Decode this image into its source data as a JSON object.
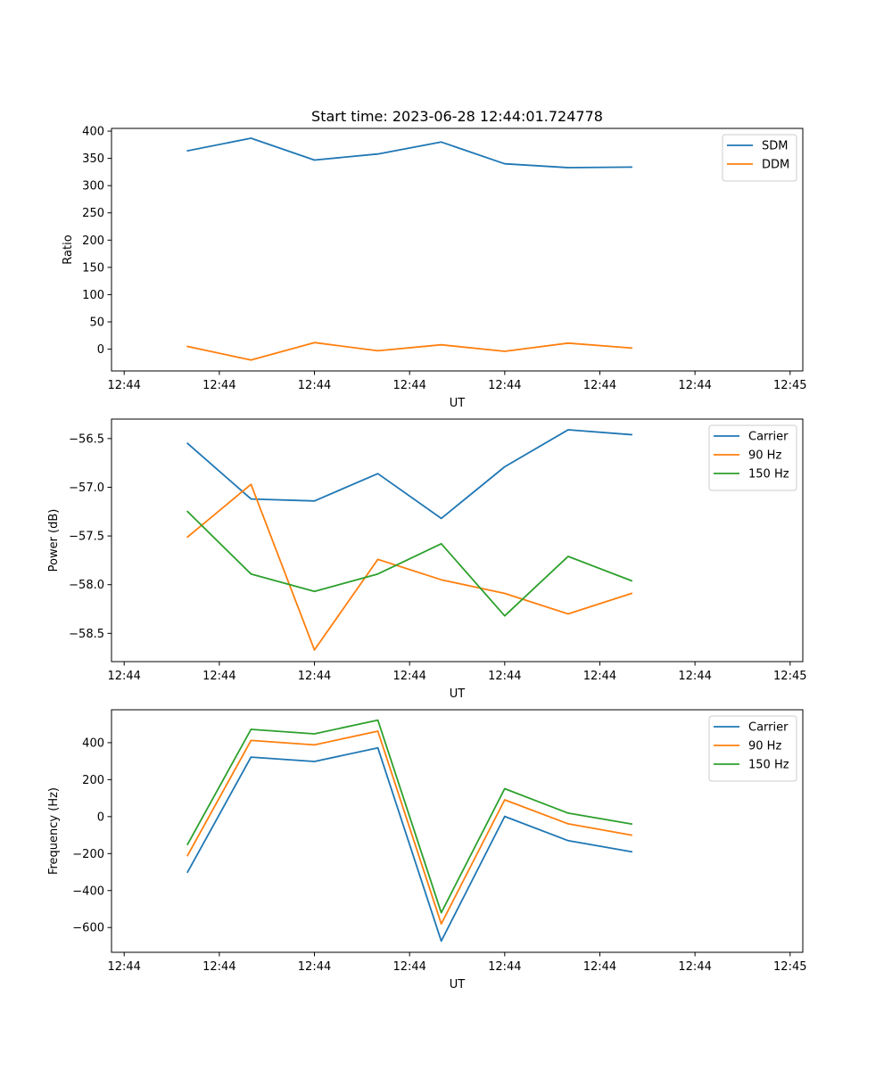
{
  "figure": {
    "title": "Start time: 2023-06-28 12:44:01.724778"
  },
  "colors": {
    "blue": "#1f77b4",
    "orange": "#ff7f0e",
    "green": "#2ca02c"
  },
  "chart_data": [
    {
      "type": "line",
      "title": "Start time: 2023-06-28 12:44:01.724778",
      "xlabel": "UT",
      "ylabel": "Ratio",
      "x_tick_labels": [
        "12:44",
        "12:44",
        "12:44",
        "12:44",
        "12:44",
        "12:44",
        "12:44",
        "12:45"
      ],
      "y_ticks": [
        0,
        50,
        100,
        150,
        200,
        250,
        300,
        350,
        400
      ],
      "ylim": [
        -40,
        405
      ],
      "legend_position": "upper right",
      "series": [
        {
          "name": "SDM",
          "color": "#1f77b4",
          "values": [
            364,
            387,
            347,
            358,
            380,
            340,
            333,
            334
          ]
        },
        {
          "name": "DDM",
          "color": "#ff7f0e",
          "values": [
            5,
            -20,
            12,
            -3,
            8,
            -4,
            11,
            2
          ]
        }
      ]
    },
    {
      "type": "line",
      "title": "",
      "xlabel": "UT",
      "ylabel": "Power (dB)",
      "x_tick_labels": [
        "12:44",
        "12:44",
        "12:44",
        "12:44",
        "12:44",
        "12:44",
        "12:44",
        "12:45"
      ],
      "y_ticks": [
        -58.5,
        -58.0,
        -57.5,
        -57.0,
        -56.5
      ],
      "y_tick_labels": [
        "−58.5",
        "−58.0",
        "−57.5",
        "−57.0",
        "−56.5"
      ],
      "ylim": [
        -58.79,
        -56.3
      ],
      "legend_position": "upper right",
      "series": [
        {
          "name": "Carrier",
          "color": "#1f77b4",
          "values": [
            -56.55,
            -57.12,
            -57.14,
            -56.86,
            -57.32,
            -56.79,
            -56.41,
            -56.46
          ]
        },
        {
          "name": "90 Hz",
          "color": "#ff7f0e",
          "values": [
            -57.51,
            -56.97,
            -58.67,
            -57.74,
            -57.95,
            -58.09,
            -58.3,
            -58.09
          ]
        },
        {
          "name": "150 Hz",
          "color": "#2ca02c",
          "values": [
            -57.25,
            -57.89,
            -58.07,
            -57.89,
            -57.58,
            -58.32,
            -57.71,
            -57.96
          ]
        }
      ]
    },
    {
      "type": "line",
      "title": "",
      "xlabel": "UT",
      "ylabel": "Frequency (Hz)",
      "x_tick_labels": [
        "12:44",
        "12:44",
        "12:44",
        "12:44",
        "12:44",
        "12:44",
        "12:44",
        "12:45"
      ],
      "y_ticks": [
        -600,
        -400,
        -200,
        0,
        200,
        400
      ],
      "y_tick_labels": [
        "−600",
        "−400",
        "−200",
        "0",
        "200",
        "400"
      ],
      "ylim": [
        -734,
        578
      ],
      "legend_position": "upper right",
      "series": [
        {
          "name": "Carrier",
          "color": "#1f77b4",
          "values": [
            -300,
            322,
            298,
            372,
            -673,
            1,
            -130,
            -190
          ]
        },
        {
          "name": "90 Hz",
          "color": "#ff7f0e",
          "values": [
            -210,
            412,
            388,
            462,
            -580,
            91,
            -39,
            -100
          ]
        },
        {
          "name": "150 Hz",
          "color": "#2ca02c",
          "values": [
            -150,
            472,
            448,
            522,
            -520,
            151,
            19,
            -40
          ]
        }
      ]
    }
  ]
}
